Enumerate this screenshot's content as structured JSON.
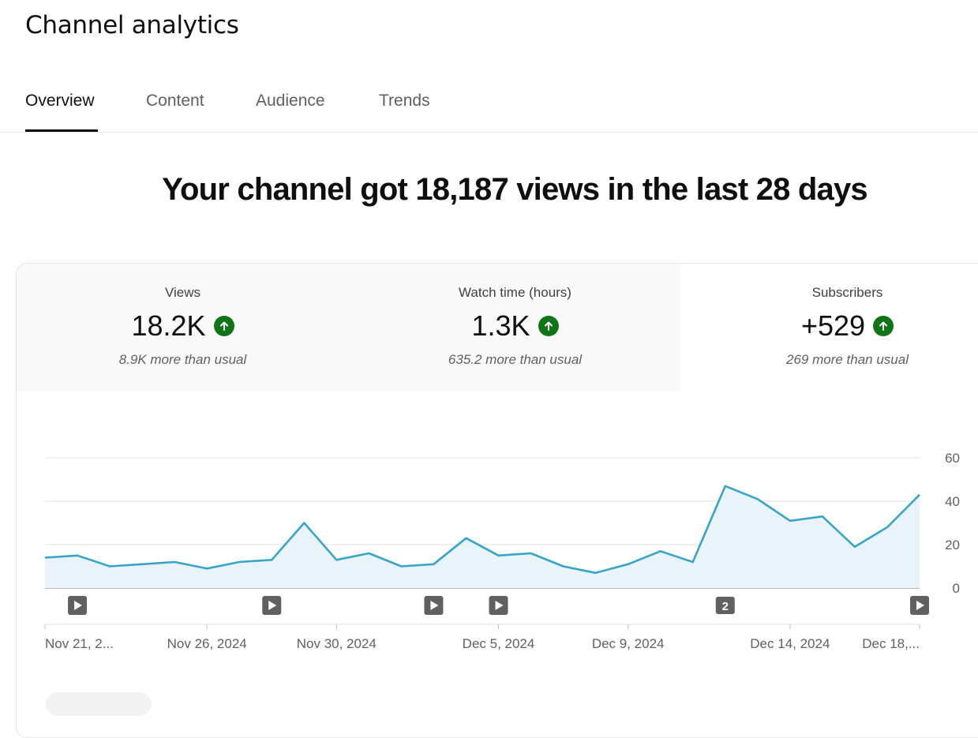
{
  "header": {
    "title": "Channel analytics"
  },
  "tabs": [
    {
      "label": "Overview",
      "active": true
    },
    {
      "label": "Content",
      "active": false
    },
    {
      "label": "Audience",
      "active": false
    },
    {
      "label": "Trends",
      "active": false
    }
  ],
  "headline": "Your channel got 18,187 views in the last 28 days",
  "metrics": [
    {
      "label": "Views",
      "value": "18.2K",
      "sub": "8.9K more than usual",
      "trend_icon": "arrow-up-icon"
    },
    {
      "label": "Watch time (hours)",
      "value": "1.3K",
      "sub": "635.2 more than usual",
      "trend_icon": "arrow-up-icon"
    },
    {
      "label": "Subscribers",
      "value": "+529",
      "sub": "269 more than usual",
      "trend_icon": "arrow-up-icon"
    }
  ],
  "colors": {
    "accent_line": "#37a4c8",
    "area_fill": "#e8f4fa",
    "trend_up": "#107516",
    "grid": "#e0e0e0"
  },
  "chart_data": {
    "type": "area",
    "y_ticks": [
      "60",
      "40",
      "20",
      "0"
    ],
    "ylim": [
      0,
      60
    ],
    "x_ticks": [
      "Nov 21, 2...",
      "Nov 26, 2024",
      "Nov 30, 2024",
      "Dec 5, 2024",
      "Dec 9, 2024",
      "Dec 14, 2024",
      "Dec 18,..."
    ],
    "x": [
      "Nov 21",
      "Nov 22",
      "Nov 23",
      "Nov 24",
      "Nov 25",
      "Nov 26",
      "Nov 27",
      "Nov 28",
      "Nov 29",
      "Nov 30",
      "Dec 1",
      "Dec 2",
      "Dec 3",
      "Dec 4",
      "Dec 5",
      "Dec 6",
      "Dec 7",
      "Dec 8",
      "Dec 9",
      "Dec 10",
      "Dec 11",
      "Dec 12",
      "Dec 13",
      "Dec 14",
      "Dec 15",
      "Dec 16",
      "Dec 17",
      "Dec 18"
    ],
    "series": [
      {
        "values": [
          14,
          15,
          10,
          11,
          12,
          9,
          12,
          13,
          30,
          13,
          16,
          10,
          11,
          23,
          15,
          16,
          10,
          7,
          11,
          17,
          12,
          47,
          41,
          31,
          33,
          19,
          28,
          43
        ]
      }
    ],
    "markers": [
      {
        "label": "",
        "icon": "play-icon",
        "x_index": 1
      },
      {
        "label": "",
        "icon": "play-icon",
        "x_index": 7
      },
      {
        "label": "",
        "icon": "play-icon",
        "x_index": 12
      },
      {
        "label": "",
        "icon": "play-icon",
        "x_index": 14
      },
      {
        "label": "2",
        "icon": "count-badge",
        "x_index": 21
      },
      {
        "label": "",
        "icon": "play-icon",
        "x_index": 27
      }
    ],
    "grid": true
  }
}
